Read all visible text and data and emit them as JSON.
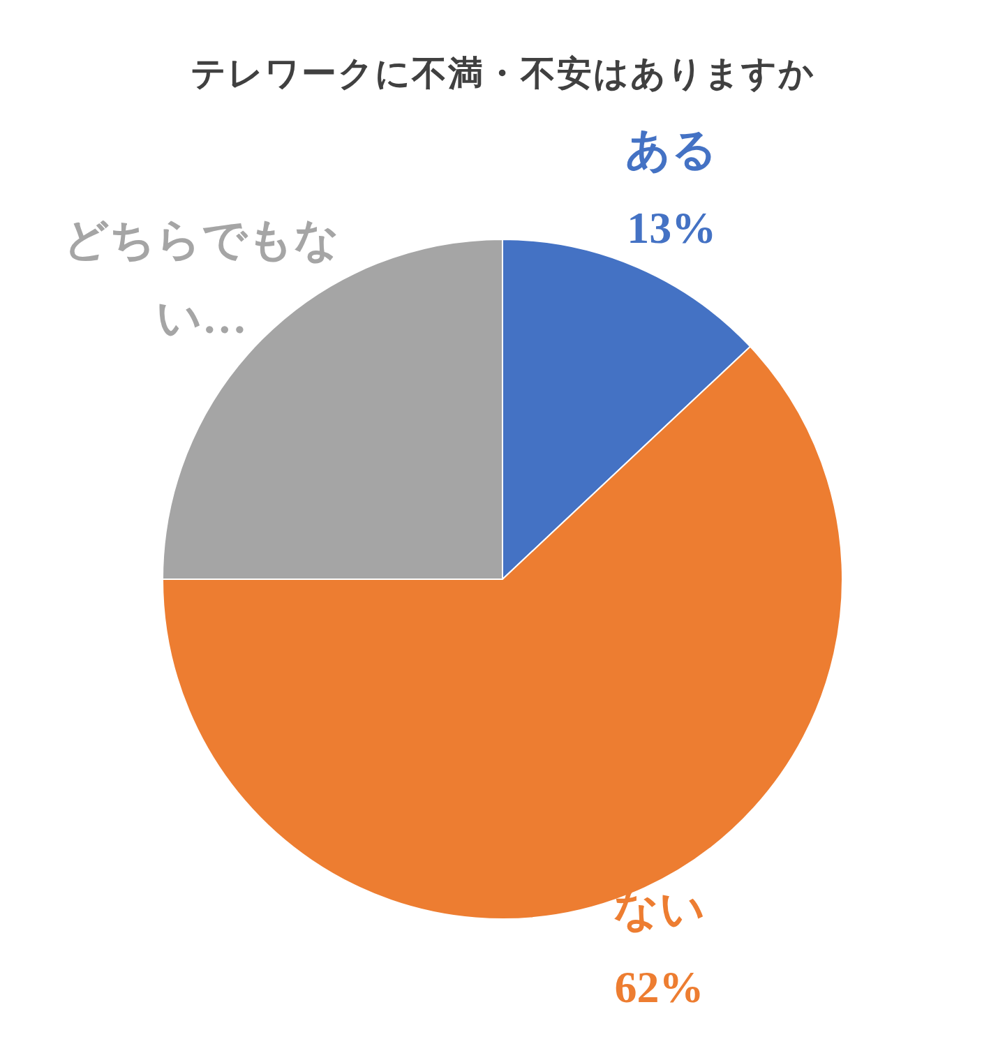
{
  "chart_data": {
    "type": "pie",
    "title": "テレワークに不満・不安はありますか",
    "categories": [
      "ある",
      "ない",
      "どちらでもない…"
    ],
    "values": [
      13,
      62,
      25
    ],
    "colors": [
      "#4472c4",
      "#ed7d31",
      "#a5a5a5"
    ],
    "value_labels": [
      "13%",
      "62%",
      null
    ]
  }
}
